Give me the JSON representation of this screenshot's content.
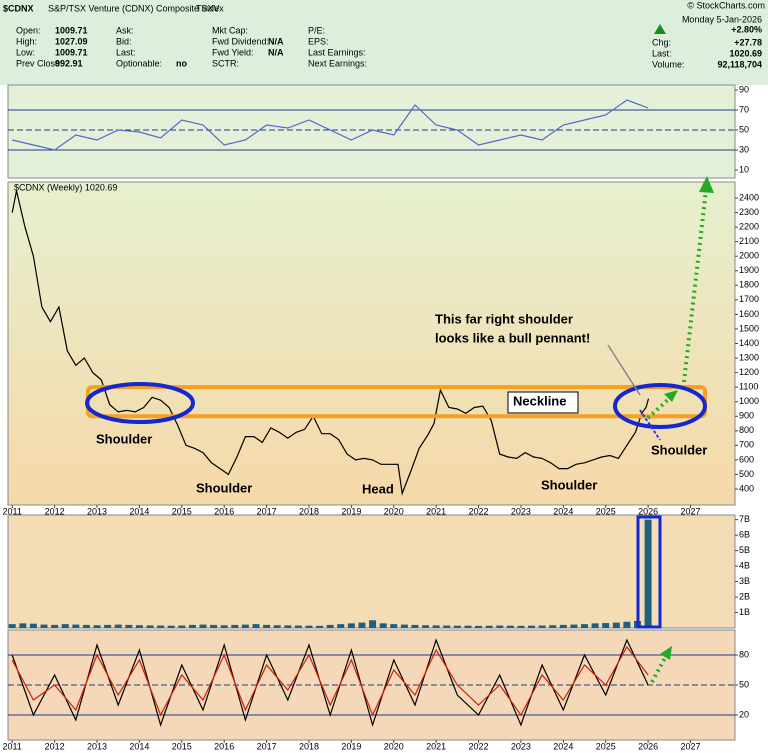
{
  "header": {
    "symbol": "$CDNX",
    "name": "S&P/TSX Venture (CDNX) Composite Index",
    "exchange": "TSXV",
    "columns": [
      [
        [
          "Open:",
          "1009.71"
        ],
        [
          "High:",
          "1027.09"
        ],
        [
          "Low:",
          "1009.71"
        ],
        [
          "Prev Close:",
          "992.91"
        ]
      ],
      [
        [
          "Ask:"
        ],
        [
          "Bid:"
        ],
        [
          "Last:"
        ],
        [
          "Optionable:",
          "no"
        ]
      ],
      [
        [
          "Mkt Cap:"
        ],
        [
          "Fwd Dividend:",
          "N/A"
        ],
        [
          "Fwd Yield:",
          "N/A"
        ],
        [
          "SCTR:"
        ]
      ],
      [
        [
          "P/E:"
        ],
        [
          "EPS:"
        ],
        [
          "Last Earnings:"
        ],
        [
          "Next Earnings:"
        ]
      ]
    ],
    "date": "Monday  5-Jan-2026",
    "change_pct": "+2.80%",
    "quote": [
      [
        "Chg:",
        "+27.78"
      ],
      [
        "Last:",
        "1020.69"
      ],
      [
        "Volume:",
        "92,118,704"
      ]
    ],
    "watermark": "© StockCharts.com"
  },
  "chart_data": [
    {
      "type": "line",
      "x": [
        2011,
        2011.5,
        2012,
        2012.5,
        2013,
        2013.5,
        2014,
        2014.5,
        2015,
        2015.5,
        2016,
        2016.5,
        2017,
        2017.5,
        2018,
        2018.5,
        2019,
        2019.5,
        2020,
        2020.5,
        2021,
        2021.5,
        2022,
        2022.5,
        2023,
        2023.5,
        2024,
        2024.5,
        2025,
        2025.5,
        2026
      ],
      "series": [
        {
          "color": "#5566cc",
          "values": [
            40,
            35,
            30,
            45,
            40,
            50,
            48,
            42,
            60,
            55,
            35,
            40,
            55,
            52,
            60,
            50,
            40,
            50,
            45,
            75,
            55,
            50,
            35,
            40,
            45,
            40,
            55,
            60,
            65,
            80,
            72
          ]
        }
      ],
      "xlim": [
        2010.9,
        2028.05
      ],
      "ylim": [
        2,
        95
      ],
      "yticks": [
        10,
        30,
        50,
        70,
        90
      ],
      "hlines": [
        30,
        50,
        70
      ]
    },
    {
      "type": "line",
      "label": "$CDNX (Weekly) 1020.69",
      "color": "#000000",
      "x": [
        2011,
        2011.1,
        2011.3,
        2011.5,
        2011.7,
        2011.9,
        2012.1,
        2012.3,
        2012.5,
        2012.7,
        2012.9,
        2013.1,
        2013.3,
        2013.5,
        2013.7,
        2013.9,
        2014.1,
        2014.3,
        2014.5,
        2014.7,
        2014.9,
        2015.1,
        2015.3,
        2015.5,
        2015.7,
        2015.9,
        2016.1,
        2016.3,
        2016.5,
        2016.7,
        2016.9,
        2017.1,
        2017.3,
        2017.5,
        2017.7,
        2017.9,
        2018.1,
        2018.3,
        2018.5,
        2018.7,
        2018.9,
        2019.1,
        2019.3,
        2019.5,
        2019.7,
        2019.9,
        2020.1,
        2020.2,
        2020.4,
        2020.6,
        2020.8,
        2020.95,
        2021.1,
        2021.3,
        2021.5,
        2021.7,
        2021.9,
        2022.1,
        2022.3,
        2022.5,
        2022.7,
        2022.9,
        2023.1,
        2023.3,
        2023.5,
        2023.7,
        2023.9,
        2024.1,
        2024.3,
        2024.5,
        2024.7,
        2024.9,
        2025.1,
        2025.3,
        2025.5,
        2025.7,
        2025.85,
        2025.95,
        2026.01
      ],
      "values": [
        2300,
        2450,
        2200,
        2000,
        1650,
        1550,
        1650,
        1350,
        1250,
        1300,
        1200,
        1150,
        980,
        930,
        940,
        930,
        960,
        1030,
        1010,
        960,
        840,
        700,
        680,
        650,
        580,
        540,
        500,
        620,
        760,
        760,
        720,
        820,
        790,
        750,
        790,
        810,
        900,
        780,
        780,
        740,
        640,
        600,
        610,
        600,
        570,
        570,
        570,
        370,
        520,
        680,
        770,
        850,
        1080,
        960,
        950,
        920,
        960,
        970,
        870,
        640,
        620,
        610,
        650,
        620,
        610,
        580,
        540,
        540,
        570,
        580,
        600,
        620,
        630,
        610,
        700,
        790,
        920,
        960,
        1020.69
      ],
      "xlim": [
        2010.9,
        2028.05
      ],
      "ylim": [
        290,
        2510
      ],
      "yticks": [
        400,
        500,
        600,
        700,
        800,
        900,
        1000,
        1100,
        1200,
        1300,
        1400,
        1500,
        1600,
        1700,
        1800,
        1900,
        2000,
        2100,
        2200,
        2300,
        2400
      ],
      "xticks": [
        2011,
        2012,
        2013,
        2014,
        2015,
        2016,
        2017,
        2018,
        2019,
        2020,
        2021,
        2022,
        2023,
        2024,
        2025,
        2026,
        2027
      ],
      "neckline_band": [
        900,
        1100
      ],
      "annotations": [
        "Shoulder",
        "Shoulder",
        "Head",
        "Shoulder",
        "Shoulder",
        "Neckline"
      ],
      "callout": [
        "This far right shoulder",
        "looks like a bull pennant!"
      ]
    },
    {
      "type": "bar",
      "color": "#1f5f80",
      "x": [
        2011,
        2011.25,
        2011.5,
        2011.75,
        2012,
        2012.25,
        2012.5,
        2012.75,
        2013,
        2013.25,
        2013.5,
        2013.75,
        2014,
        2014.25,
        2014.5,
        2014.75,
        2015,
        2015.25,
        2015.5,
        2015.75,
        2016,
        2016.25,
        2016.5,
        2016.75,
        2017,
        2017.25,
        2017.5,
        2017.75,
        2018,
        2018.25,
        2018.5,
        2018.75,
        2019,
        2019.25,
        2019.5,
        2019.75,
        2020,
        2020.25,
        2020.5,
        2020.75,
        2021,
        2021.25,
        2021.5,
        2021.75,
        2022,
        2022.25,
        2022.5,
        2022.75,
        2023,
        2023.25,
        2023.5,
        2023.75,
        2024,
        2024.25,
        2024.5,
        2024.75,
        2025,
        2025.25,
        2025.5,
        2025.75,
        2026
      ],
      "values": [
        0.25,
        0.3,
        0.28,
        0.22,
        0.2,
        0.25,
        0.22,
        0.2,
        0.18,
        0.2,
        0.22,
        0.2,
        0.18,
        0.17,
        0.16,
        0.15,
        0.16,
        0.2,
        0.22,
        0.2,
        0.18,
        0.2,
        0.22,
        0.25,
        0.2,
        0.18,
        0.17,
        0.16,
        0.15,
        0.14,
        0.2,
        0.25,
        0.3,
        0.35,
        0.5,
        0.3,
        0.25,
        0.22,
        0.2,
        0.18,
        0.17,
        0.16,
        0.15,
        0.15,
        0.14,
        0.15,
        0.16,
        0.15,
        0.14,
        0.15,
        0.16,
        0.18,
        0.2,
        0.22,
        0.25,
        0.3,
        0.32,
        0.35,
        0.4,
        0.45,
        7.0
      ],
      "xlim": [
        2010.9,
        2028.05
      ],
      "ylim": [
        0,
        7.3
      ],
      "yticks": [
        {
          "value": 1,
          "label": "1B"
        },
        {
          "value": 2,
          "label": "2B"
        },
        {
          "value": 3,
          "label": "3B"
        },
        {
          "value": 4,
          "label": "4B"
        },
        {
          "value": 5,
          "label": "5B"
        },
        {
          "value": 6,
          "label": "6B"
        },
        {
          "value": 7,
          "label": "7B"
        }
      ]
    },
    {
      "type": "line",
      "x": [
        2011,
        2011.5,
        2012,
        2012.5,
        2013,
        2013.5,
        2014,
        2014.5,
        2015,
        2015.5,
        2016,
        2016.5,
        2017,
        2017.5,
        2018,
        2018.5,
        2019,
        2019.5,
        2020,
        2020.5,
        2021,
        2021.5,
        2022,
        2022.5,
        2023,
        2023.5,
        2024,
        2024.5,
        2025,
        2025.5,
        2026
      ],
      "series": [
        {
          "color": "#000000",
          "values": [
            80,
            20,
            60,
            15,
            90,
            30,
            85,
            10,
            70,
            25,
            90,
            15,
            80,
            35,
            90,
            20,
            85,
            10,
            75,
            30,
            95,
            40,
            20,
            60,
            10,
            70,
            25,
            80,
            40,
            95,
            50
          ]
        },
        {
          "color": "#cc2200",
          "values": [
            75,
            35,
            50,
            25,
            80,
            40,
            75,
            20,
            60,
            35,
            80,
            25,
            70,
            45,
            80,
            30,
            75,
            20,
            65,
            40,
            85,
            50,
            30,
            50,
            20,
            60,
            35,
            70,
            50,
            88,
            60
          ]
        }
      ],
      "xlim": [
        2010.9,
        2028.05
      ],
      "ylim": [
        -5,
        105
      ],
      "yticks": [
        20,
        50,
        80
      ],
      "hlines": [
        20,
        50,
        80
      ],
      "xticks": [
        2011,
        2012,
        2013,
        2014,
        2015,
        2016,
        2017,
        2018,
        2019,
        2020,
        2021,
        2022,
        2023,
        2024,
        2025,
        2026,
        2027
      ]
    }
  ]
}
